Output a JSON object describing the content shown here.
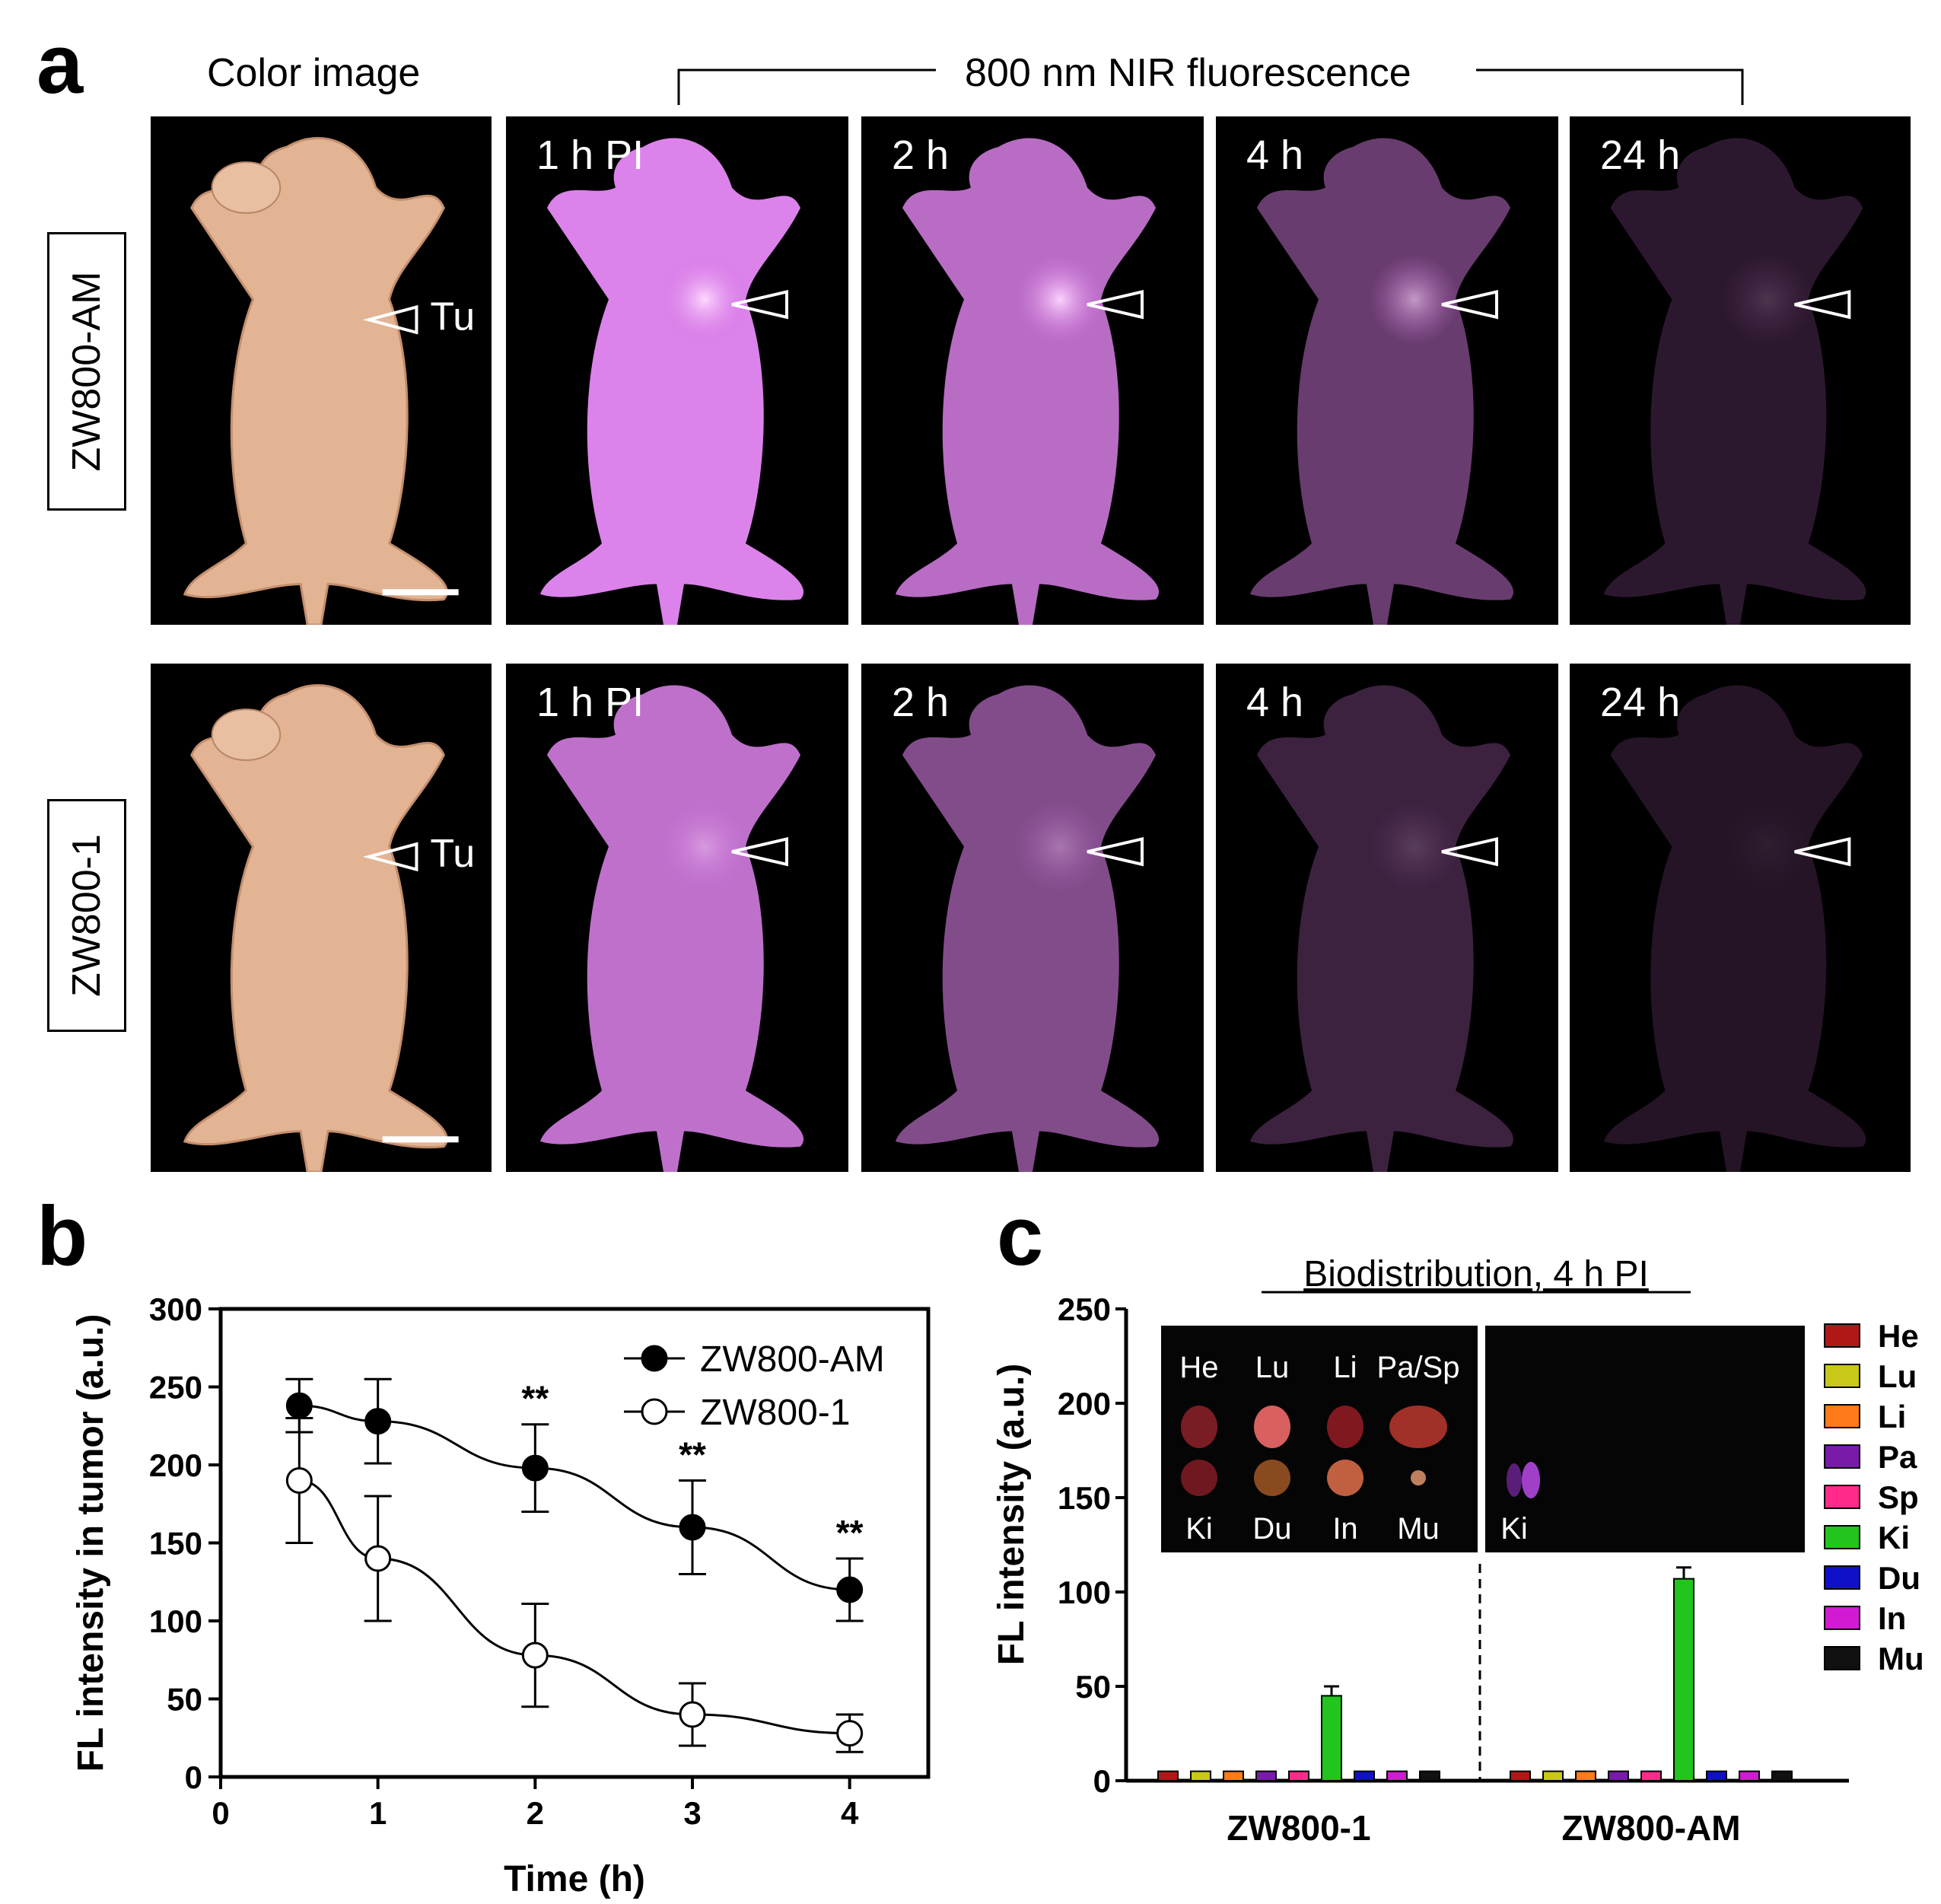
{
  "panel_a": {
    "letter": "a",
    "color_header": "Color image",
    "nir_header": "800 nm NIR fluorescence",
    "tumor_label": "Tu",
    "rows": [
      {
        "label": "ZW800-AM",
        "intensities": [
          1.0,
          0.82,
          0.42,
          0.12
        ],
        "tumor_glow": [
          1.0,
          0.95,
          0.6,
          0.15
        ]
      },
      {
        "label": "ZW800-1",
        "intensities": [
          0.85,
          0.55,
          0.2,
          0.08
        ],
        "tumor_glow": [
          0.4,
          0.3,
          0.15,
          0.05
        ]
      }
    ],
    "time_labels": [
      "1 h PI",
      "2 h",
      "4 h",
      "24 h"
    ]
  },
  "panel_b": {
    "letter": "b",
    "chart_data": {
      "type": "scatter",
      "xlabel": "Time (h)",
      "ylabel": "FL intensity in tumor (a.u.)",
      "xlim": [
        0,
        4.5
      ],
      "ylim": [
        0,
        300
      ],
      "xticks": [
        0,
        1,
        2,
        3,
        4
      ],
      "yticks": [
        0,
        50,
        100,
        150,
        200,
        250,
        300
      ],
      "legend_position": "top-right",
      "significance": [
        {
          "x": 2,
          "label": "**"
        },
        {
          "x": 3,
          "label": "**"
        },
        {
          "x": 4,
          "label": "**"
        }
      ],
      "series": [
        {
          "name": "ZW800-AM",
          "marker": "filled-circle",
          "x": [
            0.5,
            1,
            2,
            3,
            4
          ],
          "y": [
            238,
            228,
            198,
            160,
            120
          ],
          "err": [
            17,
            27,
            28,
            30,
            20
          ]
        },
        {
          "name": "ZW800-1",
          "marker": "open-circle",
          "x": [
            0.5,
            1,
            2,
            3,
            4
          ],
          "y": [
            190,
            140,
            78,
            40,
            28
          ],
          "err": [
            40,
            40,
            33,
            20,
            12
          ]
        }
      ]
    }
  },
  "panel_c": {
    "letter": "c",
    "inset_organs_top": [
      "He",
      "Lu",
      "Li",
      "Pa/Sp"
    ],
    "inset_organs_bottom": [
      "Ki",
      "Du",
      "In",
      "Mu"
    ],
    "inset_right_label": "Ki",
    "chart_data": {
      "type": "bar",
      "title": "Biodistribution, 4 h PI",
      "ylabel": "FL intensity (a.u.)",
      "ylim": [
        0,
        250
      ],
      "yticks": [
        0,
        50,
        100,
        150,
        200,
        250
      ],
      "categories": [
        "ZW800-1",
        "ZW800-AM"
      ],
      "legend_position": "right",
      "series": [
        {
          "name": "He",
          "color": "#b01717",
          "values": [
            5,
            5
          ]
        },
        {
          "name": "Lu",
          "color": "#c8c818",
          "values": [
            5,
            5
          ]
        },
        {
          "name": "Li",
          "color": "#ff7a1a",
          "values": [
            5,
            5
          ]
        },
        {
          "name": "Pa",
          "color": "#7a1aa8",
          "values": [
            5,
            5
          ]
        },
        {
          "name": "Sp",
          "color": "#ff2a8a",
          "values": [
            5,
            5
          ]
        },
        {
          "name": "Ki",
          "color": "#22c41e",
          "values": [
            45,
            107
          ],
          "err": [
            5,
            6
          ]
        },
        {
          "name": "Du",
          "color": "#1010c8",
          "values": [
            5,
            5
          ]
        },
        {
          "name": "In",
          "color": "#d21ad2",
          "values": [
            5,
            5
          ]
        },
        {
          "name": "Mu",
          "color": "#111111",
          "values": [
            5,
            5
          ]
        }
      ]
    }
  }
}
